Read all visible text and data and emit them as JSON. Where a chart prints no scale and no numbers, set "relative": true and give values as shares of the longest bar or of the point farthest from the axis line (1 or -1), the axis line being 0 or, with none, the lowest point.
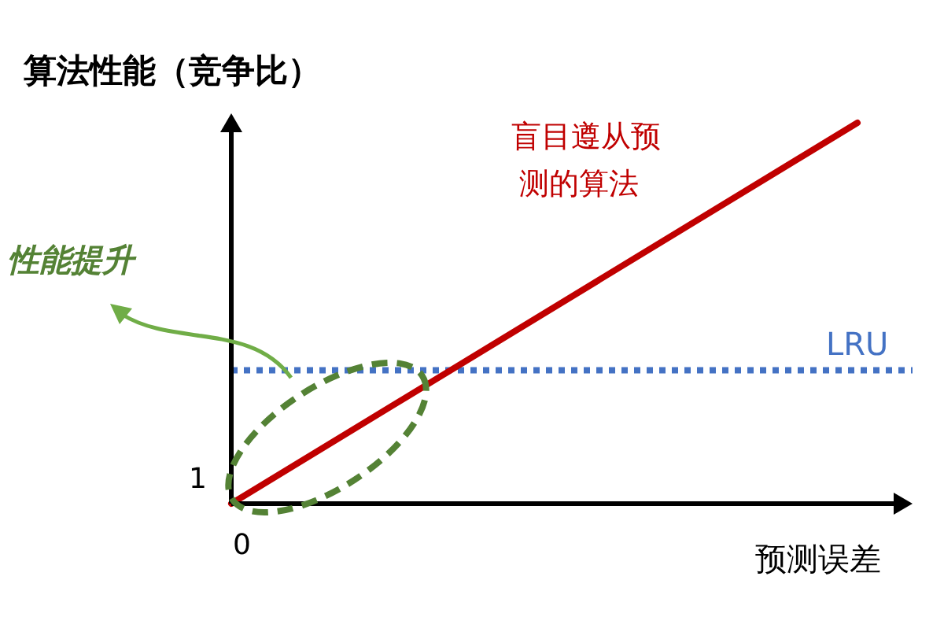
{
  "chart_data": {
    "type": "line",
    "ylabel": "算法性能（竞争比）",
    "xlabel": "预测误差",
    "relative": true,
    "categories": [
      null,
      null
    ],
    "series": [
      {
        "name": "盲目遵从预测的算法",
        "color": "#c00000",
        "values": [
          0,
          1
        ]
      }
    ],
    "ref_lines": [
      {
        "axis": "y",
        "value": 0.35,
        "label": "LRU",
        "color": "#4472c4",
        "line_style": "dotted"
      }
    ],
    "annotations": [
      "1",
      "0",
      "性能提升"
    ],
    "legend": false,
    "grid": false,
    "marker": "none",
    "line_style": "solid"
  }
}
